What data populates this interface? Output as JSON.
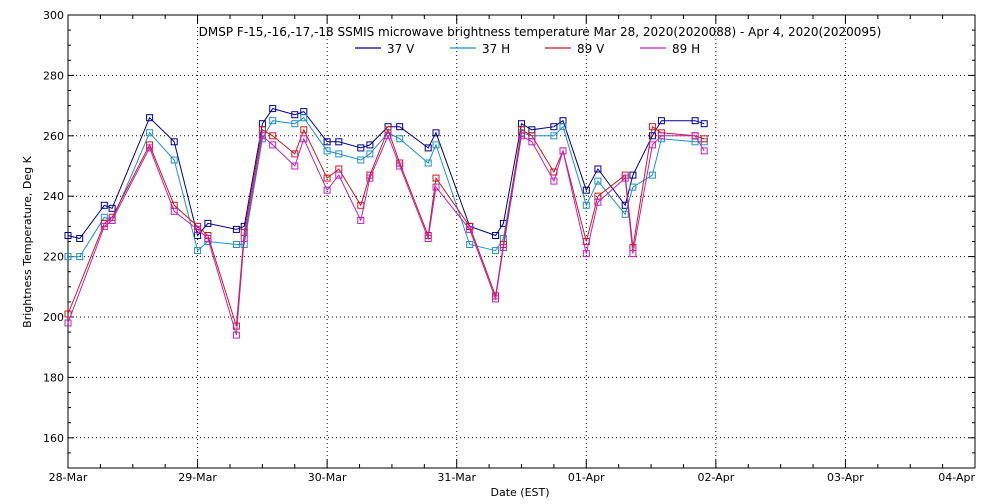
{
  "chart_data": {
    "type": "line",
    "title": "DMSP F-15,-16,-17,-18 SSMIS microwave brightness temperature Mar 28, 2020(2020088) - Apr  4, 2020(2020095)",
    "xlabel": "Date (EST)",
    "ylabel": "Brightness Temperature, Deg K",
    "x_unit": "days since 28-Mar 00:00",
    "xlim": [
      0,
      7
    ],
    "ylim": [
      150,
      300
    ],
    "x_ticks": [
      "28-Mar",
      "29-Mar",
      "30-Mar",
      "31-Mar",
      "01-Apr",
      "02-Apr",
      "03-Apr",
      "04-Apr"
    ],
    "y_ticks": [
      160,
      180,
      200,
      220,
      240,
      260,
      280,
      300
    ],
    "grid": true,
    "legend_position": "top-center",
    "series": [
      {
        "name": "37 V",
        "color": "#00008b",
        "points": [
          [
            0.0,
            227
          ],
          [
            0.09,
            226
          ],
          [
            0.28,
            237
          ],
          [
            0.34,
            236
          ],
          [
            0.63,
            266
          ],
          [
            0.82,
            258
          ],
          [
            1.0,
            227
          ],
          [
            1.08,
            231
          ],
          [
            1.3,
            229
          ],
          [
            1.36,
            230
          ],
          [
            1.5,
            264
          ],
          [
            1.58,
            269
          ],
          [
            1.75,
            267
          ],
          [
            1.82,
            268
          ],
          [
            2.0,
            258
          ],
          [
            2.09,
            258
          ],
          [
            2.26,
            256
          ],
          [
            2.33,
            257
          ],
          [
            2.47,
            263
          ],
          [
            2.56,
            263
          ],
          [
            2.78,
            256
          ],
          [
            2.84,
            261
          ],
          [
            3.1,
            230
          ],
          [
            3.3,
            227
          ],
          [
            3.36,
            231
          ],
          [
            3.5,
            264
          ],
          [
            3.58,
            262
          ],
          [
            3.75,
            263
          ],
          [
            3.82,
            265
          ],
          [
            4.0,
            242
          ],
          [
            4.09,
            249
          ],
          [
            4.3,
            237
          ],
          [
            4.36,
            247
          ],
          [
            4.51,
            260
          ],
          [
            4.58,
            265
          ],
          [
            4.84,
            265
          ],
          [
            4.91,
            264
          ]
        ]
      },
      {
        "name": "37 H",
        "color": "#1e90c8",
        "points": [
          [
            0.0,
            220
          ],
          [
            0.09,
            220
          ],
          [
            0.28,
            233
          ],
          [
            0.34,
            232
          ],
          [
            0.63,
            261
          ],
          [
            0.82,
            252
          ],
          [
            1.0,
            222
          ],
          [
            1.08,
            225
          ],
          [
            1.3,
            224
          ],
          [
            1.36,
            224
          ],
          [
            1.5,
            259
          ],
          [
            1.58,
            265
          ],
          [
            1.75,
            264
          ],
          [
            1.82,
            266
          ],
          [
            2.0,
            255
          ],
          [
            2.09,
            254
          ],
          [
            2.26,
            252
          ],
          [
            2.33,
            254
          ],
          [
            2.47,
            261
          ],
          [
            2.56,
            259
          ],
          [
            2.78,
            251
          ],
          [
            2.84,
            257
          ],
          [
            3.1,
            224
          ],
          [
            3.3,
            222
          ],
          [
            3.36,
            226
          ],
          [
            3.5,
            261
          ],
          [
            3.58,
            260
          ],
          [
            3.75,
            260
          ],
          [
            3.82,
            263
          ],
          [
            4.0,
            237
          ],
          [
            4.09,
            245
          ],
          [
            4.3,
            234
          ],
          [
            4.36,
            243
          ],
          [
            4.51,
            247
          ],
          [
            4.58,
            259
          ],
          [
            4.84,
            258
          ],
          [
            4.91,
            258
          ]
        ]
      },
      {
        "name": "89 V",
        "color": "#cc1a1a",
        "points": [
          [
            0.0,
            201
          ],
          [
            0.28,
            231
          ],
          [
            0.34,
            233
          ],
          [
            0.63,
            257
          ],
          [
            0.82,
            237
          ],
          [
            1.0,
            230
          ],
          [
            1.08,
            227
          ],
          [
            1.3,
            197
          ],
          [
            1.36,
            228
          ],
          [
            1.5,
            262
          ],
          [
            1.58,
            260
          ],
          [
            1.75,
            254
          ],
          [
            1.82,
            262
          ],
          [
            2.0,
            246
          ],
          [
            2.09,
            249
          ],
          [
            2.26,
            237
          ],
          [
            2.33,
            247
          ],
          [
            2.47,
            262
          ],
          [
            2.56,
            251
          ],
          [
            2.78,
            227
          ],
          [
            2.84,
            246
          ],
          [
            3.1,
            230
          ],
          [
            3.3,
            207
          ],
          [
            3.36,
            224
          ],
          [
            3.5,
            262
          ],
          [
            3.58,
            260
          ],
          [
            3.75,
            248
          ],
          [
            3.82,
            255
          ],
          [
            4.0,
            225
          ],
          [
            4.09,
            240
          ],
          [
            4.3,
            247
          ],
          [
            4.36,
            223
          ],
          [
            4.51,
            263
          ],
          [
            4.58,
            261
          ],
          [
            4.84,
            260
          ],
          [
            4.91,
            259
          ]
        ]
      },
      {
        "name": "89 H",
        "color": "#c020c0",
        "points": [
          [
            0.0,
            198
          ],
          [
            0.28,
            230
          ],
          [
            0.34,
            232
          ],
          [
            0.63,
            256
          ],
          [
            0.82,
            235
          ],
          [
            1.0,
            229
          ],
          [
            1.08,
            226
          ],
          [
            1.3,
            194
          ],
          [
            1.36,
            226
          ],
          [
            1.5,
            260
          ],
          [
            1.58,
            257
          ],
          [
            1.75,
            250
          ],
          [
            1.82,
            259
          ],
          [
            2.0,
            242
          ],
          [
            2.09,
            247
          ],
          [
            2.26,
            232
          ],
          [
            2.33,
            246
          ],
          [
            2.47,
            260
          ],
          [
            2.56,
            250
          ],
          [
            2.78,
            226
          ],
          [
            2.84,
            243
          ],
          [
            3.1,
            229
          ],
          [
            3.3,
            206
          ],
          [
            3.36,
            223
          ],
          [
            3.5,
            260
          ],
          [
            3.58,
            258
          ],
          [
            3.75,
            245
          ],
          [
            3.82,
            255
          ],
          [
            4.0,
            221
          ],
          [
            4.09,
            238
          ],
          [
            4.3,
            246
          ],
          [
            4.36,
            221
          ],
          [
            4.51,
            257
          ],
          [
            4.58,
            260
          ],
          [
            4.84,
            260
          ],
          [
            4.91,
            255
          ]
        ]
      }
    ]
  }
}
